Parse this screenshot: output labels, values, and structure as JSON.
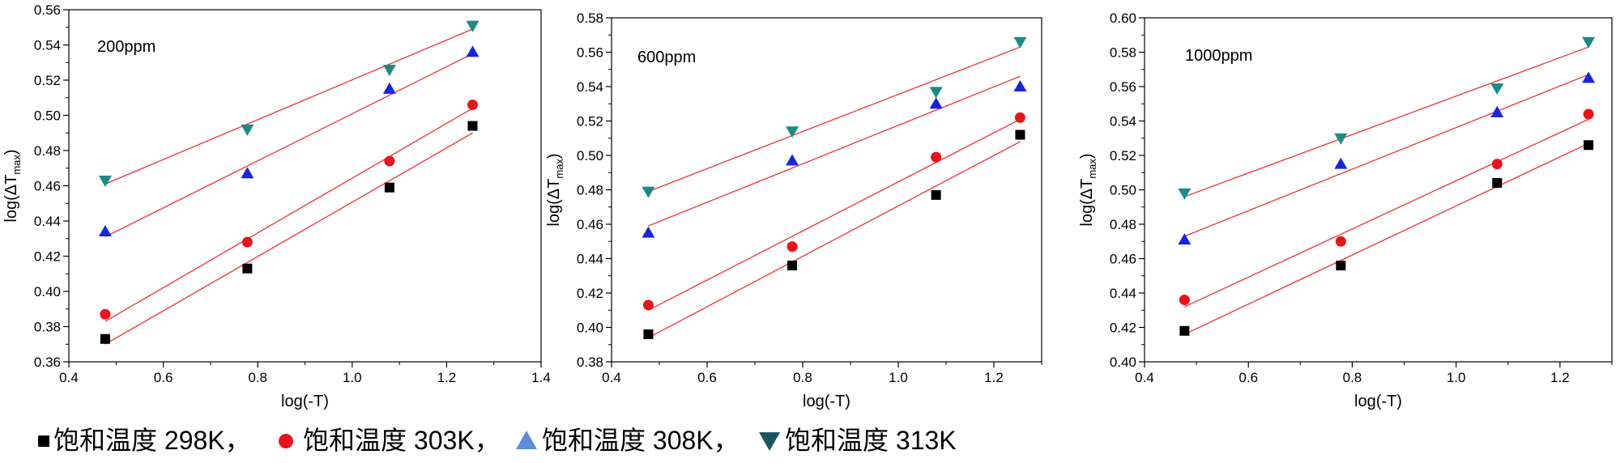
{
  "colors": {
    "s298": "#000000",
    "s303": "#e8141b",
    "s308": "#1727d6",
    "s313": "#1c8a86",
    "fit": "#e84040",
    "legend_s308": "#5b8fd6",
    "legend_s313": "#1d5560"
  },
  "legend": {
    "items": [
      {
        "label": "饱和温度 298K，",
        "marker": "square",
        "color": "#000000"
      },
      {
        "label": "饱和温度 303K，",
        "marker": "circle",
        "color": "#e8141b"
      },
      {
        "label": "饱和温度 308K，",
        "marker": "triangle-up",
        "color": "#5b8fd6"
      },
      {
        "label": "饱和温度 313K",
        "marker": "triangle-down",
        "color": "#1d5560"
      }
    ]
  },
  "chart_data": [
    {
      "type": "scatter",
      "title": "200ppm",
      "xlabel": "log(-T)",
      "ylabel": "log(ΔT",
      "ylabel_sub": "max",
      "xlim": [
        0.4,
        1.4
      ],
      "ylim": [
        0.36,
        0.56
      ],
      "xticks": [
        "0.4",
        "0.6",
        "0.8",
        "1.0",
        "1.2",
        "1.4"
      ],
      "yticks": [
        "0.36",
        "0.38",
        "0.40",
        "0.42",
        "0.44",
        "0.46",
        "0.48",
        "0.50",
        "0.52",
        "0.54",
        "0.56"
      ],
      "x": [
        0.477,
        0.778,
        1.079,
        1.255
      ],
      "series": [
        {
          "name": "饱和温度 298K",
          "marker": "square",
          "values": [
            0.373,
            0.413,
            0.459,
            0.494
          ],
          "fit": [
            0.37,
            0.49
          ]
        },
        {
          "name": "饱和温度 303K",
          "marker": "circle",
          "values": [
            0.387,
            0.428,
            0.474,
            0.506
          ],
          "fit": [
            0.383,
            0.504
          ]
        },
        {
          "name": "饱和温度 308K",
          "marker": "triangle-up",
          "values": [
            0.434,
            0.467,
            0.515,
            0.536
          ],
          "fit": [
            0.431,
            0.535
          ]
        },
        {
          "name": "饱和温度 313K",
          "marker": "triangle-down",
          "values": [
            0.463,
            0.492,
            0.526,
            0.551
          ],
          "fit": [
            0.461,
            0.549
          ]
        }
      ]
    },
    {
      "type": "scatter",
      "title": "600ppm",
      "xlabel": "log(-T)",
      "ylabel": "log(ΔT",
      "ylabel_sub": "max",
      "xlim": [
        0.4,
        1.3
      ],
      "ylim": [
        0.38,
        0.58
      ],
      "xticks": [
        "0.4",
        "0.6",
        "0.8",
        "1.0",
        "1.2"
      ],
      "yticks": [
        "0.38",
        "0.40",
        "0.42",
        "0.44",
        "0.46",
        "0.48",
        "0.50",
        "0.52",
        "0.54",
        "0.56",
        "0.58"
      ],
      "x": [
        0.477,
        0.778,
        1.079,
        1.255
      ],
      "series": [
        {
          "name": "饱和温度 298K",
          "marker": "square",
          "values": [
            0.396,
            0.436,
            0.477,
            0.512
          ],
          "fit": [
            0.394,
            0.508
          ]
        },
        {
          "name": "饱和温度 303K",
          "marker": "circle",
          "values": [
            0.413,
            0.447,
            0.499,
            0.522
          ],
          "fit": [
            0.41,
            0.521
          ]
        },
        {
          "name": "饱和温度 308K",
          "marker": "triangle-up",
          "values": [
            0.455,
            0.497,
            0.53,
            0.54
          ],
          "fit": [
            0.459,
            0.546
          ]
        },
        {
          "name": "饱和温度 313K",
          "marker": "triangle-down",
          "values": [
            0.479,
            0.514,
            0.537,
            0.566
          ],
          "fit": [
            0.479,
            0.563
          ]
        }
      ]
    },
    {
      "type": "scatter",
      "title": "1000ppm",
      "xlabel": "log(-T)",
      "ylabel": "log(ΔT",
      "ylabel_sub": "max",
      "xlim": [
        0.4,
        1.3
      ],
      "ylim": [
        0.4,
        0.6
      ],
      "xticks": [
        "0.4",
        "0.6",
        "0.8",
        "1.0",
        "1.2"
      ],
      "yticks": [
        "0.40",
        "0.42",
        "0.44",
        "0.46",
        "0.48",
        "0.50",
        "0.52",
        "0.54",
        "0.56",
        "0.58",
        "0.60"
      ],
      "x": [
        0.477,
        0.778,
        1.079,
        1.255
      ],
      "series": [
        {
          "name": "饱和温度 298K",
          "marker": "square",
          "values": [
            0.418,
            0.456,
            0.504,
            0.526
          ],
          "fit": [
            0.416,
            0.527
          ]
        },
        {
          "name": "饱和温度 303K",
          "marker": "circle",
          "values": [
            0.436,
            0.47,
            0.515,
            0.544
          ],
          "fit": [
            0.432,
            0.541
          ]
        },
        {
          "name": "饱和温度 308K",
          "marker": "triangle-up",
          "values": [
            0.471,
            0.515,
            0.545,
            0.565
          ],
          "fit": [
            0.473,
            0.567
          ]
        },
        {
          "name": "饱和温度 313K",
          "marker": "triangle-down",
          "values": [
            0.498,
            0.53,
            0.559,
            0.586
          ],
          "fit": [
            0.496,
            0.583
          ]
        }
      ]
    }
  ]
}
